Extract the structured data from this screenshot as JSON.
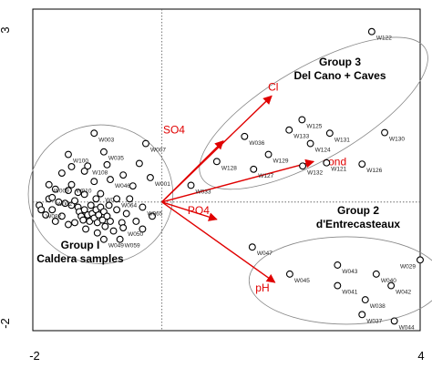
{
  "chart_data": {
    "type": "scatter",
    "title": "",
    "xlabel": "",
    "ylabel": "",
    "xlim": [
      -2,
      4
    ],
    "ylim": [
      -2,
      3
    ],
    "x_ticks": [
      "-2",
      "4"
    ],
    "y_ticks": [
      "3",
      "-2"
    ],
    "colors": {
      "vector": "#e00000",
      "point": "#000000",
      "ellipse": "#888888"
    },
    "vectors": [
      {
        "name": "Cl",
        "x": 1.7,
        "y": 1.65
      },
      {
        "name": "SO4",
        "x": 0.95,
        "y": 0.95
      },
      {
        "name": "cond",
        "x": 2.35,
        "y": 0.63
      },
      {
        "name": "PO4",
        "x": 0.85,
        "y": -0.27
      },
      {
        "name": "pH",
        "x": 1.75,
        "y": -1.25
      }
    ],
    "groups": [
      {
        "line1": "Group 3",
        "line2": "Del Cano + Caves"
      },
      {
        "line1": "Group 2",
        "line2": "d'Entrecasteaux"
      },
      {
        "line1": "Group I",
        "line2": "Caldera samples"
      }
    ],
    "labeled_points": [
      {
        "label": "W122",
        "x": 3.25,
        "y": 2.65
      },
      {
        "label": "W125",
        "x": 2.17,
        "y": 1.28
      },
      {
        "label": "W133",
        "x": 1.97,
        "y": 1.12
      },
      {
        "label": "W131",
        "x": 2.6,
        "y": 1.07
      },
      {
        "label": "W130",
        "x": 3.45,
        "y": 1.08
      },
      {
        "label": "W124",
        "x": 2.3,
        "y": 0.91
      },
      {
        "label": "W129",
        "x": 1.65,
        "y": 0.74
      },
      {
        "label": "W126",
        "x": 3.1,
        "y": 0.59
      },
      {
        "label": "W128",
        "x": 0.85,
        "y": 0.63
      },
      {
        "label": "W127",
        "x": 1.42,
        "y": 0.51
      },
      {
        "label": "W132",
        "x": 2.18,
        "y": 0.56
      },
      {
        "label": "W121",
        "x": 2.55,
        "y": 0.61
      },
      {
        "label": "W033",
        "x": 0.45,
        "y": 0.26
      },
      {
        "label": "W036",
        "x": 1.28,
        "y": 1.02
      },
      {
        "label": "W003",
        "x": -1.05,
        "y": 1.07
      },
      {
        "label": "W007",
        "x": -0.25,
        "y": 0.91
      },
      {
        "label": "W100",
        "x": -1.45,
        "y": 0.74
      },
      {
        "label": "W035",
        "x": -0.9,
        "y": 0.78
      },
      {
        "label": "W108",
        "x": -1.15,
        "y": 0.56
      },
      {
        "label": "W046",
        "x": -0.8,
        "y": 0.35
      },
      {
        "label": "W001",
        "x": -0.18,
        "y": 0.38
      },
      {
        "label": "W009",
        "x": -1.75,
        "y": 0.27
      },
      {
        "label": "W010",
        "x": -1.4,
        "y": 0.27
      },
      {
        "label": "W002",
        "x": -1.7,
        "y": 0.07
      },
      {
        "label": "W012",
        "x": -0.95,
        "y": 0.13
      },
      {
        "label": "W064",
        "x": -0.7,
        "y": 0.05
      },
      {
        "label": "W082",
        "x": -1.87,
        "y": -0.12
      },
      {
        "label": "W065",
        "x": -0.3,
        "y": -0.08
      },
      {
        "label": "W050",
        "x": -0.6,
        "y": -0.4
      },
      {
        "label": "W049",
        "x": -0.9,
        "y": -0.58
      },
      {
        "label": "W059",
        "x": -0.65,
        "y": -0.58
      },
      {
        "label": "W047",
        "x": 1.4,
        "y": -0.7
      },
      {
        "label": "W029",
        "x": 4.0,
        "y": -0.9
      },
      {
        "label": "W045",
        "x": 1.98,
        "y": -1.12
      },
      {
        "label": "W043",
        "x": 2.72,
        "y": -0.98
      },
      {
        "label": "W040",
        "x": 3.32,
        "y": -1.12
      },
      {
        "label": "W042",
        "x": 3.55,
        "y": -1.3
      },
      {
        "label": "W041",
        "x": 2.72,
        "y": -1.3
      },
      {
        "label": "W038",
        "x": 3.15,
        "y": -1.52
      },
      {
        "label": "W037",
        "x": 3.1,
        "y": -1.75
      },
      {
        "label": "W044",
        "x": 3.6,
        "y": -1.85
      }
    ],
    "cluster_points": [
      [
        -1.75,
        0.05
      ],
      [
        -1.6,
        0.0
      ],
      [
        -1.5,
        -0.02
      ],
      [
        -1.4,
        -0.05
      ],
      [
        -1.35,
        0.02
      ],
      [
        -1.3,
        -0.08
      ],
      [
        -1.28,
        -0.15
      ],
      [
        -1.25,
        -0.22
      ],
      [
        -1.22,
        -0.28
      ],
      [
        -1.2,
        -0.12
      ],
      [
        -1.15,
        -0.2
      ],
      [
        -1.12,
        -0.3
      ],
      [
        -1.1,
        -0.05
      ],
      [
        -1.08,
        -0.18
      ],
      [
        -1.05,
        -0.25
      ],
      [
        -1.02,
        -0.12
      ],
      [
        -1.0,
        -0.32
      ],
      [
        -0.98,
        -0.2
      ],
      [
        -0.95,
        -0.08
      ],
      [
        -0.92,
        -0.28
      ],
      [
        -0.9,
        -0.15
      ],
      [
        -0.88,
        -0.38
      ],
      [
        -0.85,
        -0.22
      ],
      [
        -0.82,
        -0.05
      ],
      [
        -0.8,
        -0.3
      ],
      [
        -1.45,
        -0.35
      ],
      [
        -1.55,
        -0.22
      ],
      [
        -1.65,
        -0.3
      ],
      [
        -1.7,
        -0.12
      ],
      [
        -1.8,
        -0.2
      ],
      [
        -1.9,
        -0.05
      ],
      [
        -1.45,
        0.18
      ],
      [
        -1.3,
        0.15
      ],
      [
        -1.2,
        0.12
      ],
      [
        -1.05,
        0.32
      ],
      [
        -1.55,
        0.45
      ],
      [
        -1.2,
        0.48
      ],
      [
        -0.85,
        0.58
      ],
      [
        -0.6,
        0.42
      ],
      [
        -0.45,
        0.25
      ],
      [
        -0.5,
        0.05
      ],
      [
        -0.55,
        -0.18
      ],
      [
        -0.4,
        -0.3
      ],
      [
        -0.3,
        -0.42
      ],
      [
        -0.75,
        -0.45
      ],
      [
        -1.0,
        -0.48
      ],
      [
        -1.18,
        -0.42
      ],
      [
        -0.7,
        -0.12
      ],
      [
        -0.15,
        -0.22
      ],
      [
        -1.65,
        0.2
      ],
      [
        -1.4,
        0.55
      ],
      [
        -0.35,
        0.6
      ],
      [
        -1.02,
        0.05
      ],
      [
        -0.62,
        -0.32
      ],
      [
        -1.35,
        -0.32
      ]
    ]
  }
}
